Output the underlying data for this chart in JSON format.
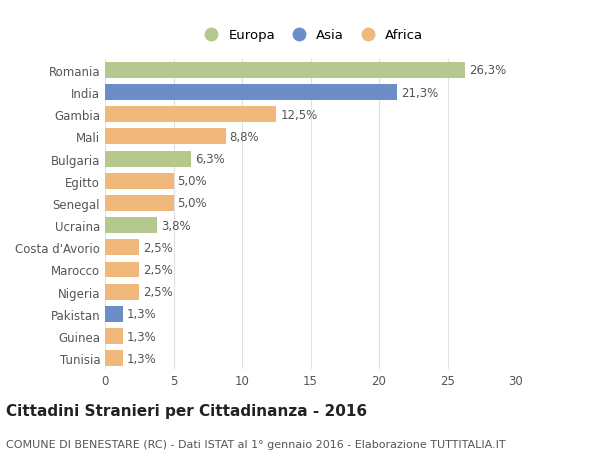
{
  "countries": [
    "Romania",
    "India",
    "Gambia",
    "Mali",
    "Bulgaria",
    "Egitto",
    "Senegal",
    "Ucraina",
    "Costa d'Avorio",
    "Marocco",
    "Nigeria",
    "Pakistan",
    "Guinea",
    "Tunisia"
  ],
  "values": [
    26.3,
    21.3,
    12.5,
    8.8,
    6.3,
    5.0,
    5.0,
    3.8,
    2.5,
    2.5,
    2.5,
    1.3,
    1.3,
    1.3
  ],
  "labels": [
    "26,3%",
    "21,3%",
    "12,5%",
    "8,8%",
    "6,3%",
    "5,0%",
    "5,0%",
    "3,8%",
    "2,5%",
    "2,5%",
    "2,5%",
    "1,3%",
    "1,3%",
    "1,3%"
  ],
  "continents": [
    "Europa",
    "Asia",
    "Africa",
    "Africa",
    "Europa",
    "Africa",
    "Africa",
    "Europa",
    "Africa",
    "Africa",
    "Africa",
    "Asia",
    "Africa",
    "Africa"
  ],
  "colors": {
    "Europa": "#b5c98e",
    "Asia": "#6b8ec8",
    "Africa": "#f0b87a"
  },
  "legend_order": [
    "Europa",
    "Asia",
    "Africa"
  ],
  "xlim": [
    0,
    30
  ],
  "xticks": [
    0,
    5,
    10,
    15,
    20,
    25,
    30
  ],
  "title": "Cittadini Stranieri per Cittadinanza - 2016",
  "subtitle": "COMUNE DI BENESTARE (RC) - Dati ISTAT al 1° gennaio 2016 - Elaborazione TUTTITALIA.IT",
  "background_color": "#ffffff",
  "bar_height": 0.72,
  "label_fontsize": 8.5,
  "tick_fontsize": 8.5,
  "title_fontsize": 11,
  "subtitle_fontsize": 8
}
